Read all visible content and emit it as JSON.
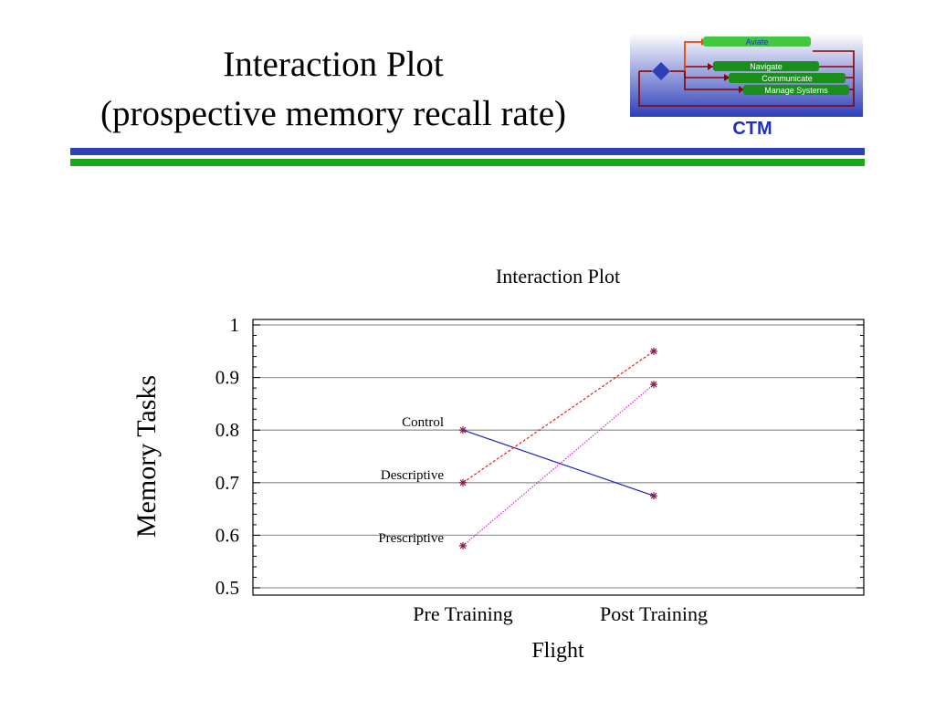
{
  "slide": {
    "title_line1": "Interaction Plot",
    "title_line2": "(prospective memory recall rate)"
  },
  "logo": {
    "label": "CTM",
    "items": [
      "Aviate",
      "Navigate",
      "Communicate",
      "Manage Systems"
    ],
    "colors": {
      "blue": "#2e3fb8",
      "green": "#1aa51a",
      "dark_red": "#8b0000",
      "orange": "#e8450f"
    }
  },
  "chart_data": {
    "type": "line",
    "title": "Interaction Plot",
    "xlabel": "Flight",
    "ylabel": "Memory Tasks",
    "categories": [
      "Pre Training",
      "Post Training"
    ],
    "ylim": [
      0.5,
      1
    ],
    "yticks": [
      0.5,
      0.6,
      0.7,
      0.8,
      0.9,
      1
    ],
    "ytick_labels": [
      "0.5",
      "0.6",
      "0.7",
      "0.8",
      "0.9",
      "1"
    ],
    "grid": true,
    "series": [
      {
        "name": "Control",
        "values": [
          0.8,
          0.675
        ],
        "color": "#1f1fbf",
        "dash": "solid"
      },
      {
        "name": "Descriptive",
        "values": [
          0.7,
          0.95
        ],
        "color": "#e81f1f",
        "dash": "dashed"
      },
      {
        "name": "Prescriptive",
        "values": [
          0.58,
          0.887
        ],
        "color": "#e020e0",
        "dash": "dotted"
      }
    ],
    "marker_color": "#8b1a4a"
  }
}
